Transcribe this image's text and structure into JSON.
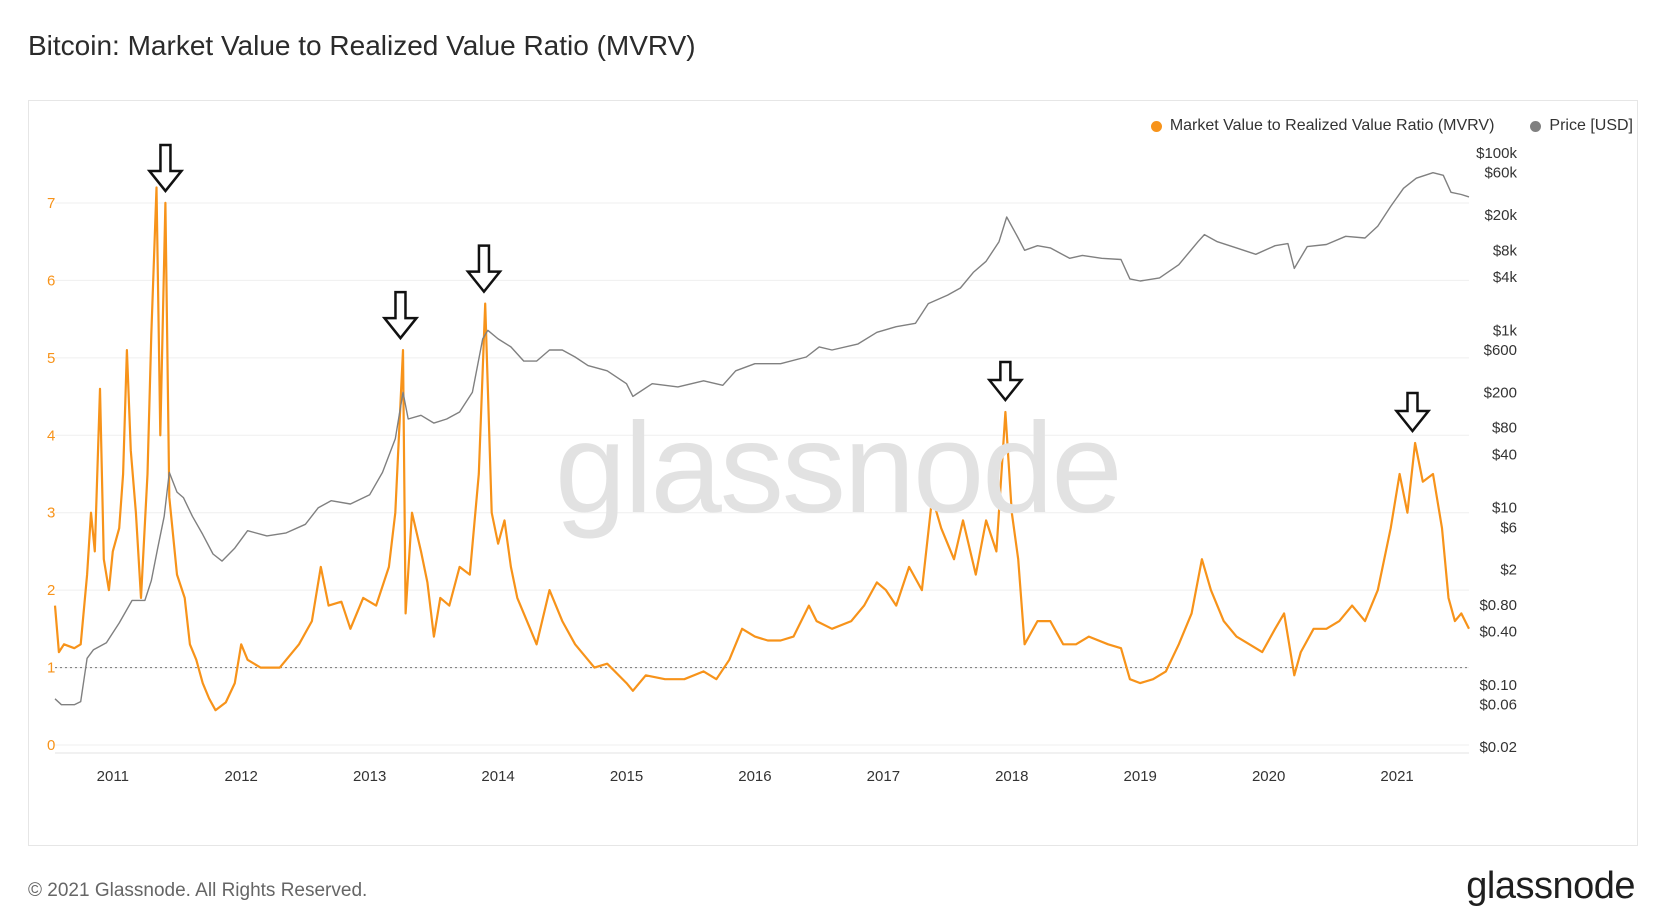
{
  "page": {
    "title": "Bitcoin: Market Value to Realized Value Ratio (MVRV)",
    "copyright": "© 2021 Glassnode. All Rights Reserved.",
    "logo_text": "glassnode",
    "watermark_text": "glassnode"
  },
  "chart_data": {
    "type": "line",
    "legend": [
      {
        "name": "Market Value to Realized Value Ratio (MVRV)",
        "color": "#f7931a"
      },
      {
        "name": "Price [USD]",
        "color": "#808080"
      }
    ],
    "x_ticks": [
      "2011",
      "2012",
      "2013",
      "2014",
      "2015",
      "2016",
      "2017",
      "2018",
      "2019",
      "2020",
      "2021"
    ],
    "y_left": {
      "ticks": [
        0,
        1,
        2,
        3,
        4,
        5,
        6,
        7
      ],
      "range": [
        0,
        7.8
      ],
      "color": "#f7931a"
    },
    "y_right": {
      "scale": "log",
      "ticks": [
        {
          "value": 100000,
          "label": "$100k"
        },
        {
          "value": 60000,
          "label": "$60k"
        },
        {
          "value": 20000,
          "label": "$20k"
        },
        {
          "value": 8000,
          "label": "$8k"
        },
        {
          "value": 4000,
          "label": "$4k"
        },
        {
          "value": 1000,
          "label": "$1k"
        },
        {
          "value": 600,
          "label": "$600"
        },
        {
          "value": 200,
          "label": "$200"
        },
        {
          "value": 80,
          "label": "$80"
        },
        {
          "value": 40,
          "label": "$40"
        },
        {
          "value": 10,
          "label": "$10"
        },
        {
          "value": 6,
          "label": "$6"
        },
        {
          "value": 2,
          "label": "$2"
        },
        {
          "value": 0.8,
          "label": "$0.80"
        },
        {
          "value": 0.4,
          "label": "$0.40"
        },
        {
          "value": 0.1,
          "label": "$0.10"
        },
        {
          "value": 0.06,
          "label": "$0.06"
        },
        {
          "value": 0.02,
          "label": "$0.02"
        }
      ]
    },
    "x_range": [
      2010.55,
      2021.56
    ],
    "reference_line": {
      "value": 1,
      "style": "dotted"
    },
    "series": [
      {
        "name": "Market Value to Realized Value Ratio (MVRV)",
        "color": "#f7931a",
        "axis": "left",
        "points": [
          [
            2010.55,
            1.8
          ],
          [
            2010.58,
            1.2
          ],
          [
            2010.62,
            1.3
          ],
          [
            2010.7,
            1.25
          ],
          [
            2010.75,
            1.3
          ],
          [
            2010.8,
            2.2
          ],
          [
            2010.83,
            3.0
          ],
          [
            2010.86,
            2.5
          ],
          [
            2010.9,
            4.6
          ],
          [
            2010.93,
            2.4
          ],
          [
            2010.97,
            2.0
          ],
          [
            2011.0,
            2.5
          ],
          [
            2011.05,
            2.8
          ],
          [
            2011.08,
            3.5
          ],
          [
            2011.11,
            5.1
          ],
          [
            2011.14,
            3.8
          ],
          [
            2011.18,
            3.0
          ],
          [
            2011.22,
            1.9
          ],
          [
            2011.27,
            3.5
          ],
          [
            2011.3,
            5.3
          ],
          [
            2011.34,
            7.2
          ],
          [
            2011.37,
            4.0
          ],
          [
            2011.41,
            7.0
          ],
          [
            2011.44,
            3.2
          ],
          [
            2011.5,
            2.2
          ],
          [
            2011.56,
            1.9
          ],
          [
            2011.6,
            1.3
          ],
          [
            2011.65,
            1.1
          ],
          [
            2011.7,
            0.8
          ],
          [
            2011.75,
            0.6
          ],
          [
            2011.8,
            0.45
          ],
          [
            2011.88,
            0.55
          ],
          [
            2011.95,
            0.8
          ],
          [
            2012.0,
            1.3
          ],
          [
            2012.05,
            1.1
          ],
          [
            2012.15,
            1.0
          ],
          [
            2012.3,
            1.0
          ],
          [
            2012.45,
            1.3
          ],
          [
            2012.55,
            1.6
          ],
          [
            2012.62,
            2.3
          ],
          [
            2012.68,
            1.8
          ],
          [
            2012.78,
            1.85
          ],
          [
            2012.85,
            1.5
          ],
          [
            2012.95,
            1.9
          ],
          [
            2013.05,
            1.8
          ],
          [
            2013.15,
            2.3
          ],
          [
            2013.2,
            3.0
          ],
          [
            2013.26,
            5.1
          ],
          [
            2013.28,
            1.7
          ],
          [
            2013.33,
            3.0
          ],
          [
            2013.4,
            2.5
          ],
          [
            2013.45,
            2.1
          ],
          [
            2013.5,
            1.4
          ],
          [
            2013.55,
            1.9
          ],
          [
            2013.62,
            1.8
          ],
          [
            2013.7,
            2.3
          ],
          [
            2013.78,
            2.2
          ],
          [
            2013.85,
            3.5
          ],
          [
            2013.9,
            5.7
          ],
          [
            2013.95,
            3.0
          ],
          [
            2014.0,
            2.6
          ],
          [
            2014.05,
            2.9
          ],
          [
            2014.1,
            2.3
          ],
          [
            2014.15,
            1.9
          ],
          [
            2014.25,
            1.5
          ],
          [
            2014.3,
            1.3
          ],
          [
            2014.4,
            2.0
          ],
          [
            2014.5,
            1.6
          ],
          [
            2014.6,
            1.3
          ],
          [
            2014.75,
            1.0
          ],
          [
            2014.85,
            1.05
          ],
          [
            2015.0,
            0.8
          ],
          [
            2015.05,
            0.7
          ],
          [
            2015.15,
            0.9
          ],
          [
            2015.3,
            0.85
          ],
          [
            2015.45,
            0.85
          ],
          [
            2015.6,
            0.95
          ],
          [
            2015.7,
            0.85
          ],
          [
            2015.8,
            1.1
          ],
          [
            2015.9,
            1.5
          ],
          [
            2016.0,
            1.4
          ],
          [
            2016.1,
            1.35
          ],
          [
            2016.2,
            1.35
          ],
          [
            2016.3,
            1.4
          ],
          [
            2016.42,
            1.8
          ],
          [
            2016.48,
            1.6
          ],
          [
            2016.6,
            1.5
          ],
          [
            2016.75,
            1.6
          ],
          [
            2016.85,
            1.8
          ],
          [
            2016.95,
            2.1
          ],
          [
            2017.02,
            2.0
          ],
          [
            2017.1,
            1.8
          ],
          [
            2017.2,
            2.3
          ],
          [
            2017.3,
            2.0
          ],
          [
            2017.38,
            3.2
          ],
          [
            2017.45,
            2.8
          ],
          [
            2017.55,
            2.4
          ],
          [
            2017.62,
            2.9
          ],
          [
            2017.72,
            2.2
          ],
          [
            2017.8,
            2.9
          ],
          [
            2017.88,
            2.5
          ],
          [
            2017.95,
            4.3
          ],
          [
            2018.0,
            3.0
          ],
          [
            2018.05,
            2.4
          ],
          [
            2018.1,
            1.3
          ],
          [
            2018.2,
            1.6
          ],
          [
            2018.3,
            1.6
          ],
          [
            2018.4,
            1.3
          ],
          [
            2018.5,
            1.3
          ],
          [
            2018.6,
            1.4
          ],
          [
            2018.75,
            1.3
          ],
          [
            2018.85,
            1.25
          ],
          [
            2018.92,
            0.85
          ],
          [
            2019.0,
            0.8
          ],
          [
            2019.1,
            0.85
          ],
          [
            2019.2,
            0.95
          ],
          [
            2019.3,
            1.3
          ],
          [
            2019.4,
            1.7
          ],
          [
            2019.48,
            2.4
          ],
          [
            2019.55,
            2.0
          ],
          [
            2019.65,
            1.6
          ],
          [
            2019.75,
            1.4
          ],
          [
            2019.85,
            1.3
          ],
          [
            2019.95,
            1.2
          ],
          [
            2020.05,
            1.5
          ],
          [
            2020.12,
            1.7
          ],
          [
            2020.2,
            0.9
          ],
          [
            2020.25,
            1.2
          ],
          [
            2020.35,
            1.5
          ],
          [
            2020.45,
            1.5
          ],
          [
            2020.55,
            1.6
          ],
          [
            2020.65,
            1.8
          ],
          [
            2020.75,
            1.6
          ],
          [
            2020.85,
            2.0
          ],
          [
            2020.95,
            2.8
          ],
          [
            2021.02,
            3.5
          ],
          [
            2021.08,
            3.0
          ],
          [
            2021.14,
            3.9
          ],
          [
            2021.2,
            3.4
          ],
          [
            2021.28,
            3.5
          ],
          [
            2021.35,
            2.8
          ],
          [
            2021.4,
            1.9
          ],
          [
            2021.45,
            1.6
          ],
          [
            2021.5,
            1.7
          ],
          [
            2021.56,
            1.5
          ]
        ]
      },
      {
        "name": "Price [USD]",
        "color": "#808080",
        "axis": "right",
        "points": [
          [
            2010.55,
            0.07
          ],
          [
            2010.6,
            0.06
          ],
          [
            2010.7,
            0.06
          ],
          [
            2010.75,
            0.065
          ],
          [
            2010.8,
            0.2
          ],
          [
            2010.85,
            0.25
          ],
          [
            2010.95,
            0.3
          ],
          [
            2011.05,
            0.5
          ],
          [
            2011.15,
            0.9
          ],
          [
            2011.25,
            0.9
          ],
          [
            2011.3,
            1.5
          ],
          [
            2011.35,
            3.5
          ],
          [
            2011.4,
            8
          ],
          [
            2011.44,
            25
          ],
          [
            2011.5,
            15
          ],
          [
            2011.55,
            13
          ],
          [
            2011.62,
            8
          ],
          [
            2011.7,
            5
          ],
          [
            2011.78,
            3
          ],
          [
            2011.85,
            2.5
          ],
          [
            2011.95,
            3.5
          ],
          [
            2012.05,
            5.5
          ],
          [
            2012.2,
            4.8
          ],
          [
            2012.35,
            5.2
          ],
          [
            2012.5,
            6.5
          ],
          [
            2012.6,
            10
          ],
          [
            2012.7,
            12
          ],
          [
            2012.85,
            11
          ],
          [
            2013.0,
            14
          ],
          [
            2013.1,
            25
          ],
          [
            2013.2,
            60
          ],
          [
            2013.26,
            200
          ],
          [
            2013.3,
            100
          ],
          [
            2013.4,
            110
          ],
          [
            2013.5,
            90
          ],
          [
            2013.6,
            100
          ],
          [
            2013.7,
            120
          ],
          [
            2013.8,
            200
          ],
          [
            2013.88,
            800
          ],
          [
            2013.92,
            1000
          ],
          [
            2014.0,
            800
          ],
          [
            2014.1,
            650
          ],
          [
            2014.2,
            450
          ],
          [
            2014.3,
            450
          ],
          [
            2014.4,
            600
          ],
          [
            2014.5,
            600
          ],
          [
            2014.6,
            500
          ],
          [
            2014.7,
            400
          ],
          [
            2014.85,
            350
          ],
          [
            2015.0,
            250
          ],
          [
            2015.05,
            180
          ],
          [
            2015.2,
            250
          ],
          [
            2015.4,
            230
          ],
          [
            2015.6,
            270
          ],
          [
            2015.75,
            240
          ],
          [
            2015.85,
            350
          ],
          [
            2016.0,
            420
          ],
          [
            2016.2,
            420
          ],
          [
            2016.4,
            500
          ],
          [
            2016.5,
            650
          ],
          [
            2016.6,
            600
          ],
          [
            2016.8,
            700
          ],
          [
            2016.95,
            950
          ],
          [
            2017.1,
            1100
          ],
          [
            2017.25,
            1200
          ],
          [
            2017.35,
            2000
          ],
          [
            2017.5,
            2500
          ],
          [
            2017.6,
            3000
          ],
          [
            2017.7,
            4500
          ],
          [
            2017.8,
            6000
          ],
          [
            2017.9,
            10000
          ],
          [
            2017.96,
            19000
          ],
          [
            2018.05,
            11000
          ],
          [
            2018.1,
            8000
          ],
          [
            2018.2,
            9000
          ],
          [
            2018.3,
            8500
          ],
          [
            2018.45,
            6500
          ],
          [
            2018.55,
            7000
          ],
          [
            2018.7,
            6500
          ],
          [
            2018.85,
            6300
          ],
          [
            2018.92,
            3800
          ],
          [
            2019.0,
            3600
          ],
          [
            2019.15,
            3900
          ],
          [
            2019.3,
            5500
          ],
          [
            2019.45,
            10000
          ],
          [
            2019.5,
            12000
          ],
          [
            2019.6,
            10000
          ],
          [
            2019.75,
            8500
          ],
          [
            2019.9,
            7200
          ],
          [
            2020.05,
            9000
          ],
          [
            2020.15,
            9500
          ],
          [
            2020.2,
            5000
          ],
          [
            2020.3,
            8800
          ],
          [
            2020.45,
            9300
          ],
          [
            2020.6,
            11500
          ],
          [
            2020.75,
            11000
          ],
          [
            2020.85,
            15000
          ],
          [
            2020.95,
            25000
          ],
          [
            2021.05,
            40000
          ],
          [
            2021.15,
            52000
          ],
          [
            2021.28,
            60000
          ],
          [
            2021.36,
            56000
          ],
          [
            2021.42,
            36000
          ],
          [
            2021.5,
            34000
          ],
          [
            2021.56,
            32000
          ]
        ]
      }
    ],
    "annotations": [
      {
        "type": "arrow",
        "x": 2011.41
      },
      {
        "type": "arrow",
        "x": 2013.24
      },
      {
        "type": "arrow",
        "x": 2013.89
      },
      {
        "type": "arrow",
        "x": 2017.95
      },
      {
        "type": "arrow",
        "x": 2021.12
      }
    ]
  }
}
